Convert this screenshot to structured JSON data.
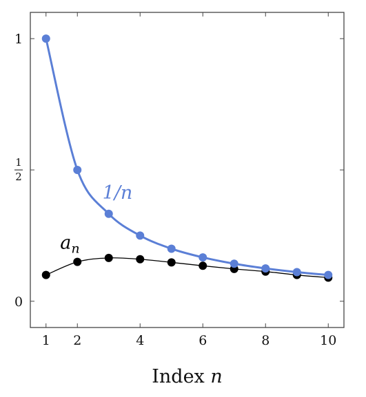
{
  "chart_data": {
    "type": "line",
    "xlabel": "Index n",
    "x": [
      1,
      2,
      3,
      4,
      5,
      6,
      7,
      8,
      9,
      10
    ],
    "xlim": [
      0.5,
      10.5
    ],
    "ylim": [
      -0.1,
      1.1
    ],
    "xticks": [
      1,
      2,
      4,
      6,
      8,
      10
    ],
    "xtick_labels": [
      "1",
      "2",
      "4",
      "6",
      "8",
      "10"
    ],
    "yticks": [
      0,
      0.5,
      1
    ],
    "ytick_labels": [
      "0",
      "1/2",
      "1"
    ],
    "grid": false,
    "series": [
      {
        "name": "1/n",
        "color": "#5b7fd6",
        "values": [
          1.0,
          0.5,
          0.333,
          0.25,
          0.2,
          0.167,
          0.143,
          0.125,
          0.111,
          0.1
        ]
      },
      {
        "name": "a_n",
        "color": "#000000",
        "values": [
          0.1,
          0.15,
          0.165,
          0.16,
          0.148,
          0.135,
          0.123,
          0.113,
          0.1,
          0.09
        ]
      }
    ]
  }
}
